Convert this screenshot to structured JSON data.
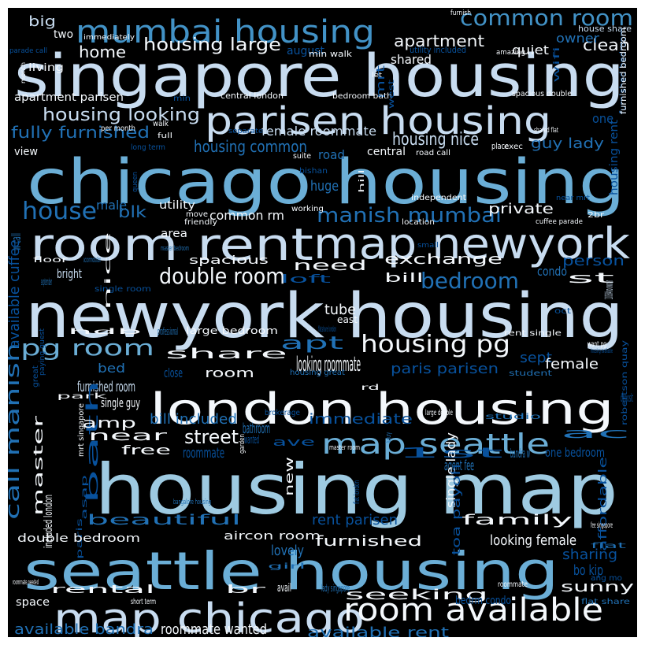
{
  "palette": {
    "background": "#000000",
    "frame": "#ffffff",
    "white": "#f4f8fc",
    "pale": "#c8dcf0",
    "light": "#9ecae1",
    "mid": "#6baed6",
    "blue": "#4292c6",
    "deep": "#2171b5",
    "dark": "#08519c"
  },
  "words": [
    {
      "text": "singapore housing",
      "c": "pale"
    },
    {
      "text": "chicago housing",
      "c": "mid"
    },
    {
      "text": "newyork housing",
      "c": "pale"
    },
    {
      "text": "housing map",
      "c": "light"
    },
    {
      "text": "london housing",
      "c": "white"
    },
    {
      "text": "seattle housing",
      "c": "mid"
    },
    {
      "text": "map chicago",
      "c": "pale"
    },
    {
      "text": "room rent",
      "c": "pale"
    },
    {
      "text": "map newyork",
      "c": "pale"
    },
    {
      "text": "parisen housing",
      "c": "pale"
    },
    {
      "text": "mumbai housing",
      "c": "blue"
    },
    {
      "text": "map seattle",
      "c": "mid"
    },
    {
      "text": "room available",
      "c": "white"
    },
    {
      "text": "common room",
      "c": "blue"
    },
    {
      "text": "housing large",
      "c": "white"
    },
    {
      "text": "double room",
      "c": "white"
    },
    {
      "text": "manish mumbai",
      "c": "deep"
    },
    {
      "text": "housing pg",
      "c": "white"
    },
    {
      "text": "pg room",
      "c": "mid"
    },
    {
      "text": "call manish",
      "c": "deep"
    },
    {
      "text": "bedroom",
      "c": "deep"
    },
    {
      "text": "housing looking",
      "c": "pale"
    },
    {
      "text": "fully furnished",
      "c": "deep"
    },
    {
      "text": "housing common",
      "c": "deep"
    },
    {
      "text": "housing nice",
      "c": "pale"
    },
    {
      "text": "house",
      "c": "deep"
    },
    {
      "text": "apartment",
      "c": "white"
    },
    {
      "text": "home",
      "c": "white"
    },
    {
      "text": "clean",
      "c": "white"
    },
    {
      "text": "big",
      "c": "pale"
    },
    {
      "text": "two",
      "c": "white"
    },
    {
      "text": "owner",
      "c": "deep"
    },
    {
      "text": "quiet",
      "c": "white"
    },
    {
      "text": "shared",
      "c": "white"
    },
    {
      "text": "living",
      "c": "white"
    },
    {
      "text": "august",
      "c": "dark"
    },
    {
      "text": "mrt",
      "c": "dark"
    },
    {
      "text": "furnish",
      "c": "white"
    },
    {
      "text": "immediately",
      "c": "white"
    },
    {
      "text": "house share",
      "c": "pale"
    },
    {
      "text": "let",
      "c": "white"
    },
    {
      "text": "min walk",
      "c": "white"
    },
    {
      "text": "utility included",
      "c": "dark"
    },
    {
      "text": "amazing",
      "c": "white"
    },
    {
      "text": "wifi",
      "c": "dark"
    },
    {
      "text": "furnished bedroom",
      "c": "dark"
    },
    {
      "text": "parade call",
      "c": "dark"
    },
    {
      "text": "month",
      "c": "white"
    },
    {
      "text": "apartment parisen",
      "c": "white"
    },
    {
      "text": "central london",
      "c": "white"
    },
    {
      "text": "bedroom bath",
      "c": "white"
    },
    {
      "text": "spacious double",
      "c": "white"
    },
    {
      "text": "west",
      "c": "dark"
    },
    {
      "text": "min",
      "c": "dark"
    },
    {
      "text": "furnished bedroom",
      "c": "white"
    },
    {
      "text": "one",
      "c": "dark"
    },
    {
      "text": "housing rent",
      "c": "dark"
    },
    {
      "text": "female roommate",
      "c": "pale"
    },
    {
      "text": "walk",
      "c": "white"
    },
    {
      "text": "full",
      "c": "white"
    },
    {
      "text": "separate",
      "c": "dark"
    },
    {
      "text": "shared flat",
      "c": "white"
    },
    {
      "text": "place",
      "c": "white"
    },
    {
      "text": "exec",
      "c": "white"
    },
    {
      "text": "guy lady",
      "c": "deep"
    },
    {
      "text": "view",
      "c": "white"
    },
    {
      "text": "per month",
      "c": "white"
    },
    {
      "text": "long term",
      "c": "dark"
    },
    {
      "text": "central",
      "c": "white"
    },
    {
      "text": "road call",
      "c": "white"
    },
    {
      "text": "suite",
      "c": "white"
    },
    {
      "text": "road",
      "c": "deep"
    },
    {
      "text": "bishan",
      "c": "dark"
    },
    {
      "text": "huge",
      "c": "deep"
    },
    {
      "text": "queen",
      "c": "dark"
    },
    {
      "text": "hill",
      "c": "white"
    },
    {
      "text": "independent",
      "c": "white"
    },
    {
      "text": "near mrt",
      "c": "dark"
    },
    {
      "text": "male",
      "c": "deep"
    },
    {
      "text": "utility",
      "c": "white"
    },
    {
      "text": "working",
      "c": "white"
    },
    {
      "text": "blk",
      "c": "deep"
    },
    {
      "text": "private",
      "c": "white"
    },
    {
      "text": "move",
      "c": "white"
    },
    {
      "text": "friendly",
      "c": "white"
    },
    {
      "text": "common rm",
      "c": "white"
    },
    {
      "text": "location",
      "c": "white"
    },
    {
      "text": "2br",
      "c": "white"
    },
    {
      "text": "cuffee parade",
      "c": "white"
    },
    {
      "text": "area",
      "c": "white"
    },
    {
      "text": "small",
      "c": "dark"
    },
    {
      "text": "w call",
      "c": "deep"
    },
    {
      "text": "person",
      "c": "dark"
    },
    {
      "text": "master bedroom",
      "c": "deep"
    },
    {
      "text": "exchange",
      "c": "white"
    },
    {
      "text": "floor",
      "c": "white"
    },
    {
      "text": "accommodation",
      "c": "deep"
    },
    {
      "text": "spacious",
      "c": "white"
    },
    {
      "text": "need",
      "c": "white"
    },
    {
      "text": "bright",
      "c": "pale"
    },
    {
      "text": "bill",
      "c": "white"
    },
    {
      "text": "condo",
      "c": "deep"
    },
    {
      "text": "st",
      "c": "white"
    },
    {
      "text": "september",
      "c": "deep"
    },
    {
      "text": "loft",
      "c": "dark"
    },
    {
      "text": "10084no owner",
      "c": "pale"
    },
    {
      "text": "single room",
      "c": "dark"
    },
    {
      "text": "available cuffee",
      "c": "dark"
    },
    {
      "text": "nice",
      "c": "white"
    },
    {
      "text": "tube",
      "c": "white"
    },
    {
      "text": "east",
      "c": "white"
    },
    {
      "text": "oct",
      "c": "dark"
    },
    {
      "text": "flatshare london",
      "c": "dark"
    },
    {
      "text": "hdb",
      "c": "white"
    },
    {
      "text": "professional",
      "c": "deep"
    },
    {
      "text": "large bedroom",
      "c": "white"
    },
    {
      "text": "rent single",
      "c": "white"
    },
    {
      "text": "share",
      "c": "white"
    },
    {
      "text": "apt",
      "c": "deep"
    },
    {
      "text": "sept",
      "c": "dark"
    },
    {
      "text": "want pg",
      "c": "white"
    },
    {
      "text": "female",
      "c": "white"
    },
    {
      "text": "housing available",
      "c": "dark"
    },
    {
      "text": "robertson quay",
      "c": "dark"
    },
    {
      "text": "paying guest",
      "c": "dark"
    },
    {
      "text": "park",
      "c": "white"
    },
    {
      "text": "bed",
      "c": "deep"
    },
    {
      "text": "close",
      "c": "dark"
    },
    {
      "text": "room",
      "c": "white"
    },
    {
      "text": "looking roommate",
      "c": "white"
    },
    {
      "text": "housing great",
      "c": "deep"
    },
    {
      "text": "paris parisen",
      "c": "dark"
    },
    {
      "text": "student",
      "c": "deep"
    },
    {
      "text": "furnished room",
      "c": "pale"
    },
    {
      "text": "bath",
      "c": "dark"
    },
    {
      "text": "rd",
      "c": "white"
    },
    {
      "text": "deposit",
      "c": "dark"
    },
    {
      "text": "great",
      "c": "dark"
    },
    {
      "text": "single guy",
      "c": "white"
    },
    {
      "text": "bill included",
      "c": "deep"
    },
    {
      "text": "immediate",
      "c": "dark"
    },
    {
      "text": "brokerage",
      "c": "dark"
    },
    {
      "text": "large double",
      "c": "white"
    },
    {
      "text": "studio",
      "c": "deep"
    },
    {
      "text": "amp",
      "c": "white"
    },
    {
      "text": "bathroom",
      "c": "deep"
    },
    {
      "text": "near",
      "c": "white"
    },
    {
      "text": "street",
      "c": "white"
    },
    {
      "text": "ac",
      "c": "deep"
    },
    {
      "text": "wanted",
      "c": "dark"
    },
    {
      "text": "ave",
      "c": "dark"
    },
    {
      "text": "luxury",
      "c": "deep"
    },
    {
      "text": "free",
      "c": "white"
    },
    {
      "text": "roommate",
      "c": "dark"
    },
    {
      "text": "garden",
      "c": "white"
    },
    {
      "text": "master room",
      "c": "white"
    },
    {
      "text": "1st",
      "c": "dark"
    },
    {
      "text": "bandra w",
      "c": "deep"
    },
    {
      "text": "one bedroom",
      "c": "dark"
    },
    {
      "text": "mrt singapore",
      "c": "white"
    },
    {
      "text": "master",
      "c": "white"
    },
    {
      "text": "new",
      "c": "white"
    },
    {
      "text": "agent fee",
      "c": "deep"
    },
    {
      "text": "single lady",
      "c": "white"
    },
    {
      "text": "affordable",
      "c": "dark"
    },
    {
      "text": "asap",
      "c": "dark"
    },
    {
      "text": "paris",
      "c": "dark"
    },
    {
      "text": "flat london",
      "c": "dark"
    },
    {
      "text": "included london",
      "c": "white"
    },
    {
      "text": "bangalore housing",
      "c": "deep"
    },
    {
      "text": "beautiful",
      "c": "deep"
    },
    {
      "text": "rent parisen",
      "c": "dark"
    },
    {
      "text": "family",
      "c": "white"
    },
    {
      "text": "fee singapore",
      "c": "white"
    },
    {
      "text": "double bedroom",
      "c": "white"
    },
    {
      "text": "aircon room",
      "c": "white"
    },
    {
      "text": "furnished",
      "c": "white"
    },
    {
      "text": "looking female",
      "c": "white"
    },
    {
      "text": "toa payoh",
      "c": "dark"
    },
    {
      "text": "flat",
      "c": "deep"
    },
    {
      "text": "lovely",
      "c": "deep"
    },
    {
      "text": "sharing",
      "c": "dark"
    },
    {
      "text": "girl",
      "c": "deep"
    },
    {
      "text": "bo kip",
      "c": "dark"
    },
    {
      "text": "ang mo",
      "c": "dark"
    },
    {
      "text": "roommate needed",
      "c": "white"
    },
    {
      "text": "rental",
      "c": "white"
    },
    {
      "text": "br",
      "c": "white"
    },
    {
      "text": "avail",
      "c": "white"
    },
    {
      "text": "lady singapore",
      "c": "deep"
    },
    {
      "text": "seeking",
      "c": "white"
    },
    {
      "text": "roommate",
      "c": "white"
    },
    {
      "text": "sunny",
      "c": "white"
    },
    {
      "text": "space",
      "c": "white"
    },
    {
      "text": "short term",
      "c": "white"
    },
    {
      "text": "bedrm condo",
      "c": "dark"
    },
    {
      "text": "flat share",
      "c": "deep"
    },
    {
      "text": "available bandra",
      "c": "deep"
    },
    {
      "text": "roommate wanted",
      "c": "white"
    },
    {
      "text": "available rent",
      "c": "deep"
    }
  ]
}
